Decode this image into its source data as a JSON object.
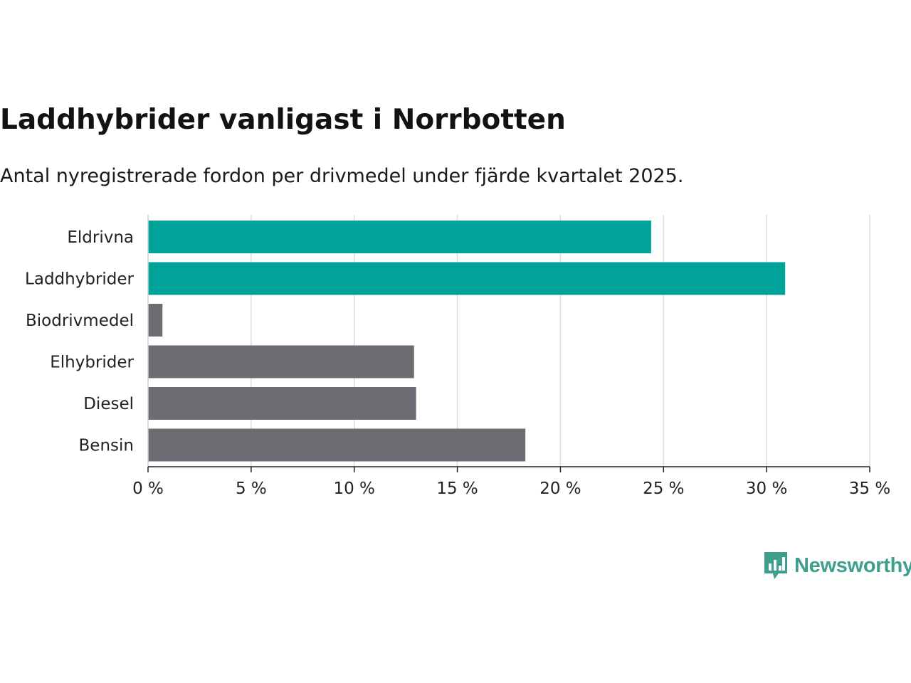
{
  "header": {
    "title": "Laddhybrider vanligast i Norrbotten",
    "subtitle": "Antal nyregistrerade fordon per drivmedel under fjärde kvartalet 2025."
  },
  "brand": {
    "name": "Newsworthy",
    "color": "#3f9f8d"
  },
  "chart_data": {
    "type": "bar",
    "orientation": "horizontal",
    "title": "Laddhybrider vanligast i Norrbotten",
    "subtitle": "Antal nyregistrerade fordon per drivmedel under fjärde kvartalet 2025.",
    "xlabel": "",
    "ylabel": "",
    "categories": [
      "Eldrivna",
      "Laddhybrider",
      "Biodrivmedel",
      "Elhybrider",
      "Diesel",
      "Bensin"
    ],
    "values": [
      24.4,
      30.9,
      0.7,
      12.9,
      13.0,
      18.3
    ],
    "highlight": [
      true,
      true,
      false,
      false,
      false,
      false
    ],
    "colors": {
      "highlight": "#00a39a",
      "default": "#6d6c72"
    },
    "xlim": [
      0,
      35
    ],
    "xticks": [
      0,
      5,
      10,
      15,
      20,
      25,
      30,
      35
    ],
    "xtick_labels": [
      "0 %",
      "5 %",
      "10 %",
      "15 %",
      "20 %",
      "25 %",
      "30 %",
      "35 %"
    ],
    "grid": true,
    "legend": "none"
  }
}
